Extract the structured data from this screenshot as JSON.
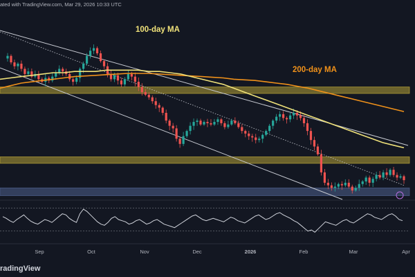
{
  "header": {
    "text": "ated with TradingView.com, Mar 29, 2026 10:33 UTC"
  },
  "brand": {
    "text": "radingView"
  },
  "colors": {
    "background": "#131722",
    "candle_up": "#26a69a",
    "candle_down": "#ef5350",
    "ma100": "#f0e27a",
    "ma200": "#f0911a",
    "resistance_zone": "#b5a136",
    "support_zone": "#4a5a86",
    "rsi_line": "#d1d4dc",
    "axis_text": "#b2b5be"
  },
  "chart_data": {
    "type": "candlestick",
    "annotations": {
      "ma100_label": "100-day MA",
      "ma200_label": "200-day MA"
    },
    "x_tick_labels": [
      "Sep",
      "Oct",
      "Nov",
      "Dec",
      "2026",
      "Feb",
      "Mar",
      "Apr"
    ],
    "price_close_path": [
      0.78,
      0.8,
      0.75,
      0.72,
      0.74,
      0.7,
      0.66,
      0.68,
      0.64,
      0.66,
      0.62,
      0.6,
      0.63,
      0.61,
      0.64,
      0.67,
      0.7,
      0.68,
      0.66,
      0.62,
      0.6,
      0.63,
      0.7,
      0.74,
      0.8,
      0.84,
      0.86,
      0.82,
      0.76,
      0.72,
      0.66,
      0.62,
      0.65,
      0.61,
      0.58,
      0.62,
      0.66,
      0.64,
      0.6,
      0.56,
      0.52,
      0.5,
      0.48,
      0.45,
      0.42,
      0.4,
      0.36,
      0.3,
      0.26,
      0.24,
      0.16,
      0.12,
      0.18,
      0.22,
      0.26,
      0.29,
      0.3,
      0.27,
      0.29,
      0.28,
      0.27,
      0.29,
      0.31,
      0.28,
      0.25,
      0.27,
      0.3,
      0.28,
      0.25,
      0.22,
      0.2,
      0.18,
      0.17,
      0.15,
      0.16,
      0.19,
      0.22,
      0.26,
      0.3,
      0.33,
      0.35,
      0.32,
      0.31,
      0.34,
      0.36,
      0.34,
      0.32,
      0.28,
      0.22,
      0.15,
      0.1,
      0.04,
      -0.1,
      -0.18,
      -0.2,
      -0.22,
      -0.21,
      -0.19,
      -0.2,
      -0.18,
      -0.21,
      -0.24,
      -0.22,
      -0.19,
      -0.17,
      -0.14,
      -0.18,
      -0.15,
      -0.12,
      -0.14,
      -0.1,
      -0.12,
      -0.08,
      -0.12,
      -0.14,
      -0.13,
      -0.16
    ],
    "ma100_path": [
      0.62,
      0.63,
      0.64,
      0.65,
      0.66,
      0.67,
      0.67,
      0.68,
      0.68,
      0.68,
      0.69,
      0.69,
      0.69,
      0.69,
      0.68,
      0.68,
      0.67,
      0.66,
      0.64,
      0.62,
      0.6,
      0.58,
      0.55,
      0.52,
      0.49,
      0.46,
      0.43,
      0.4,
      0.37,
      0.34,
      0.31,
      0.28,
      0.25,
      0.22,
      0.19,
      0.16,
      0.13,
      0.11,
      0.09
    ],
    "ma200_path": [
      0.55,
      0.57,
      0.59,
      0.6,
      0.61,
      0.62,
      0.63,
      0.64,
      0.645,
      0.65,
      0.655,
      0.66,
      0.665,
      0.665,
      0.665,
      0.66,
      0.655,
      0.65,
      0.645,
      0.64,
      0.635,
      0.63,
      0.62,
      0.615,
      0.61,
      0.6,
      0.59,
      0.58,
      0.565,
      0.55,
      0.53,
      0.51,
      0.49,
      0.47,
      0.45,
      0.43,
      0.41,
      0.39,
      0.37
    ],
    "resistance_zone": [
      0.56,
      0.51
    ],
    "support_zone": [
      0.02,
      -0.03
    ],
    "lower_zone": [
      -0.22,
      -0.28
    ],
    "rsi_path": [
      55,
      52,
      48,
      45,
      50,
      54,
      58,
      52,
      47,
      44,
      42,
      46,
      50,
      48,
      45,
      50,
      55,
      60,
      58,
      52,
      48,
      45,
      60,
      68,
      64,
      58,
      52,
      46,
      42,
      40,
      45,
      52,
      55,
      50,
      48,
      46,
      42,
      44,
      48,
      50,
      46,
      42,
      44,
      48,
      50,
      46,
      42,
      40,
      38,
      36,
      40,
      44,
      48,
      52,
      56,
      58,
      54,
      50,
      48,
      50,
      52,
      50,
      48,
      46,
      50,
      54,
      52,
      48,
      46,
      44,
      48,
      52,
      56,
      58,
      54,
      50,
      52,
      56,
      60,
      62,
      58,
      55,
      52,
      48,
      45,
      40,
      35,
      30,
      32,
      28,
      34,
      40,
      46,
      44,
      42,
      40,
      44,
      48,
      50,
      46,
      44,
      48,
      52,
      56,
      60,
      58,
      54,
      52,
      50,
      54,
      58,
      60,
      56,
      50,
      48
    ],
    "rsi_levels": [
      70,
      30
    ]
  }
}
